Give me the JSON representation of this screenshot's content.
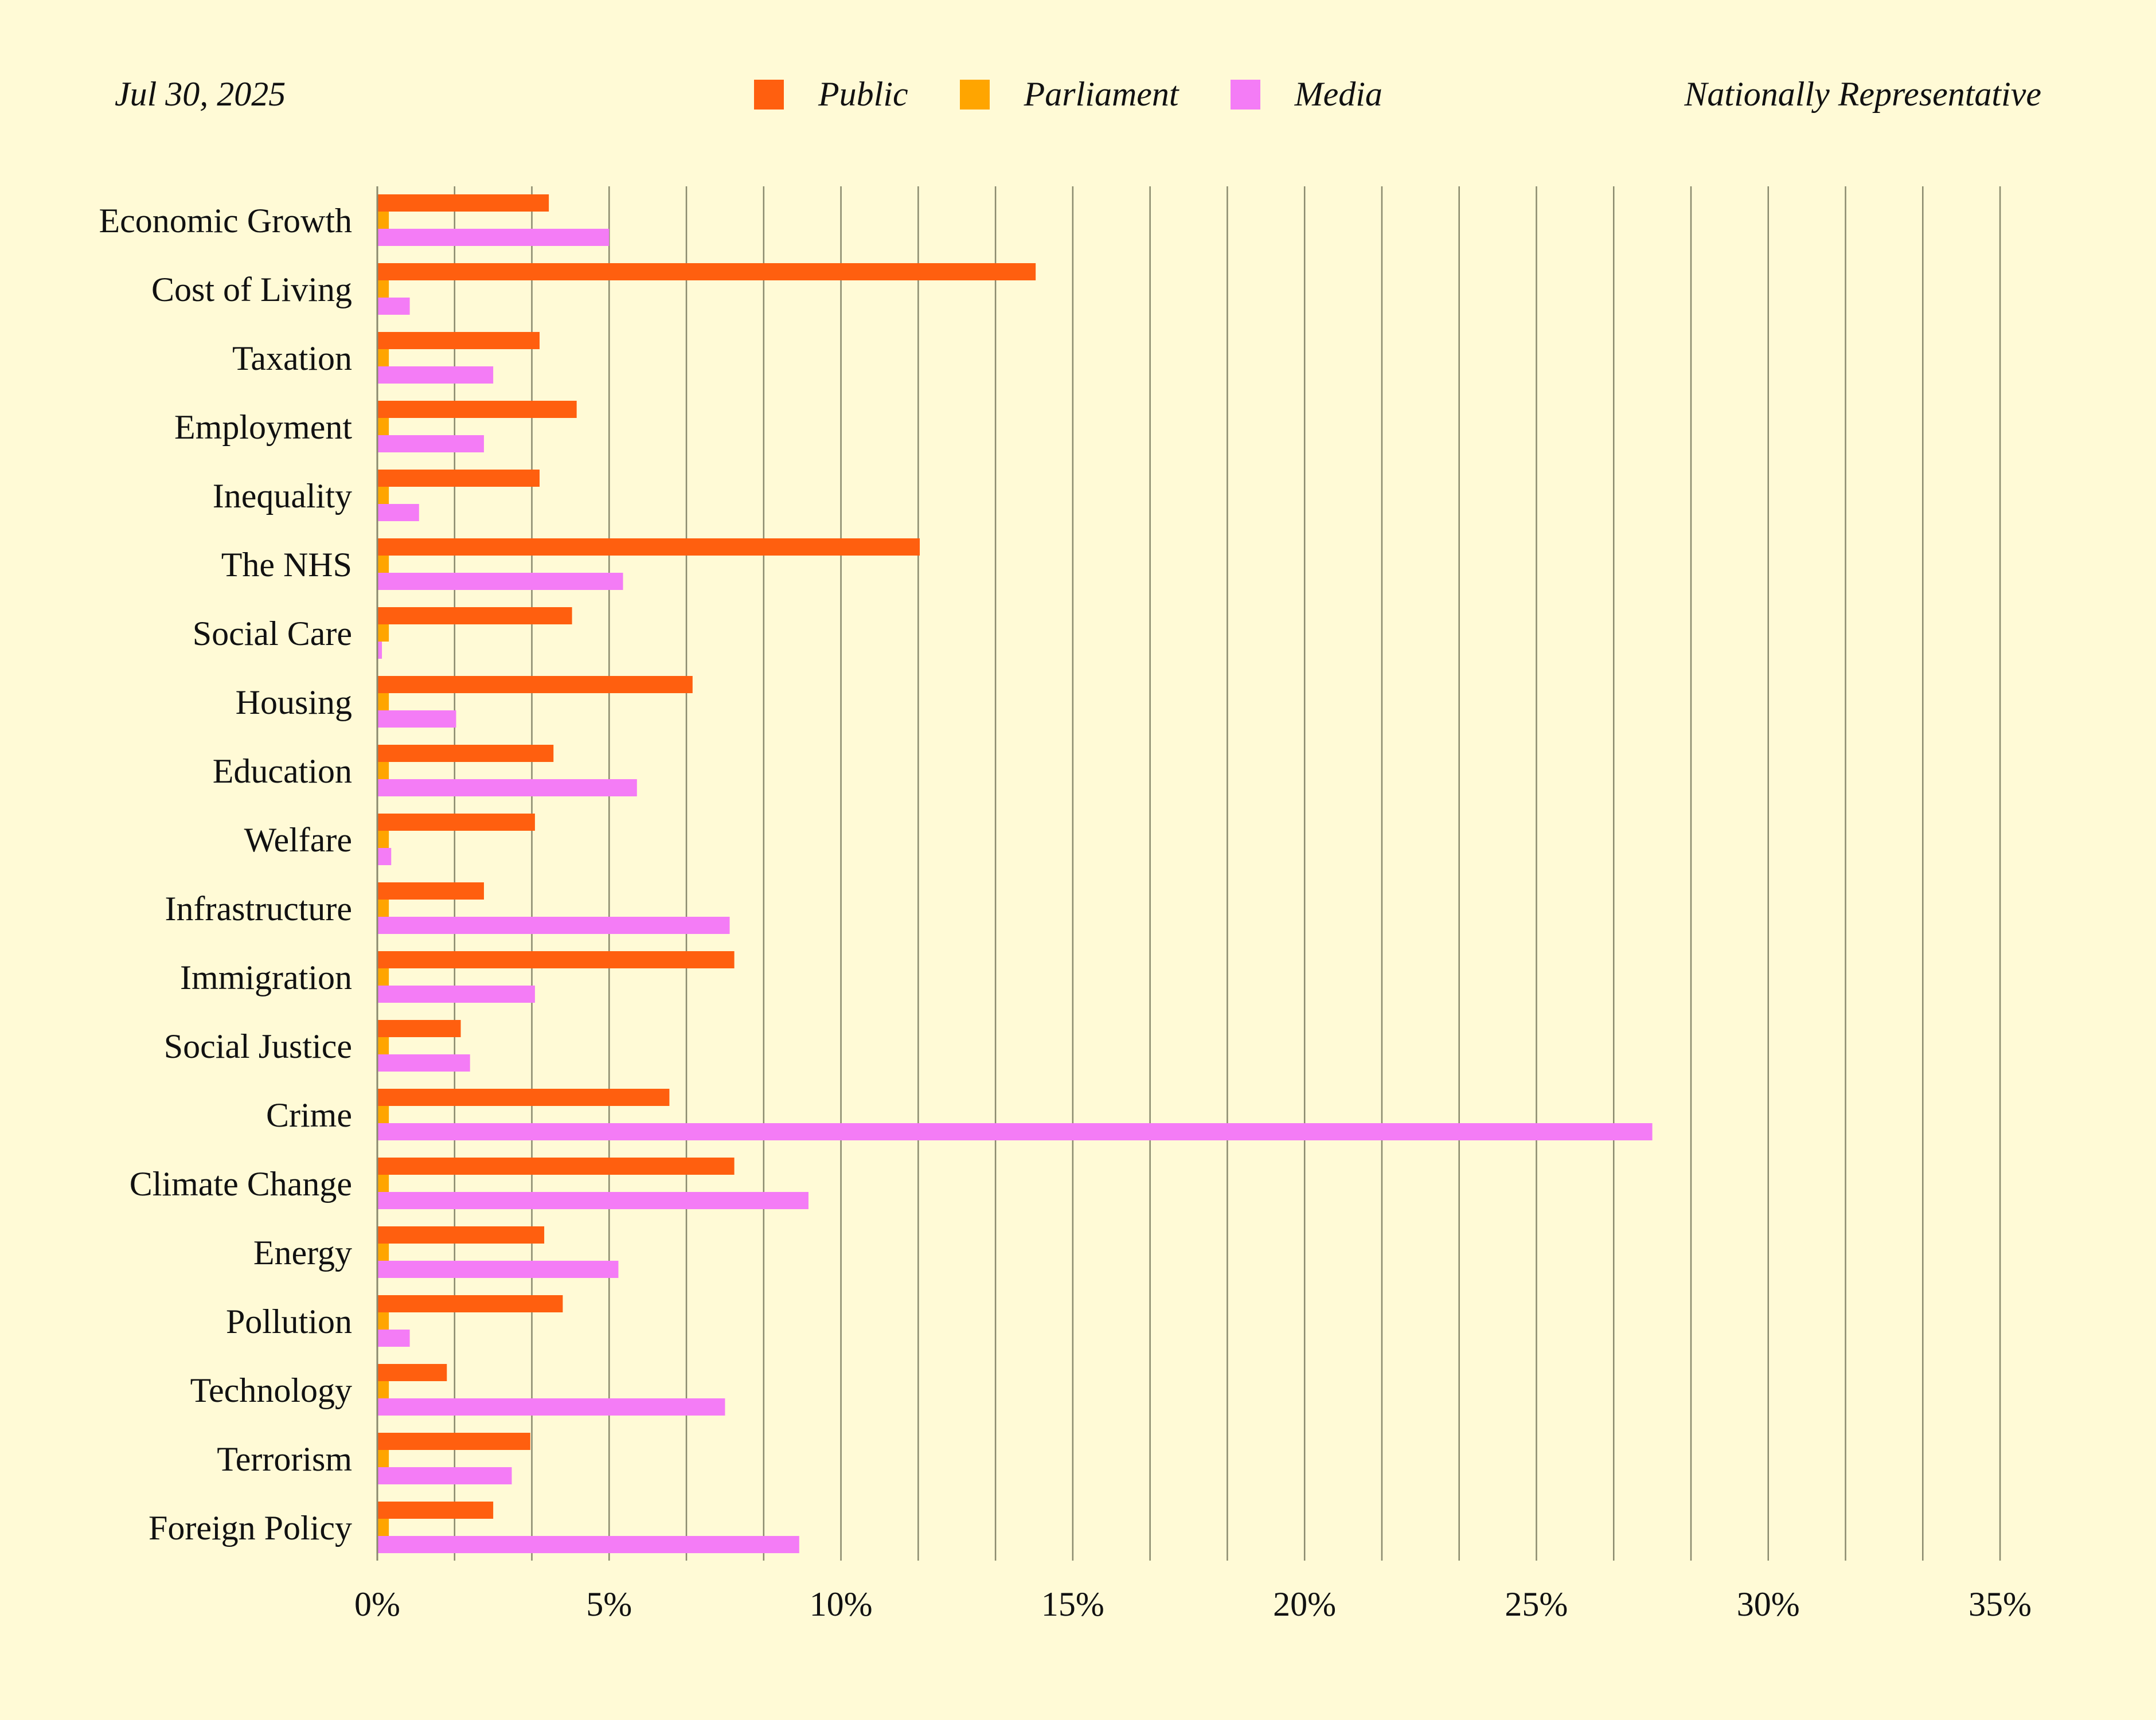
{
  "header": {
    "date": "Jul 30, 2025",
    "scope": "Nationally Representative"
  },
  "colors": {
    "background": "#fffad6",
    "public": "#ff5f0f",
    "parliament": "#ffa500",
    "media": "#f47cf6",
    "gridline": "#8a8a6e"
  },
  "chart_data": {
    "type": "bar",
    "orientation": "horizontal",
    "categories": [
      "Economic Growth",
      "Cost of Living",
      "Taxation",
      "Employment",
      "Inequality",
      "The NHS",
      "Social Care",
      "Housing",
      "Education",
      "Welfare",
      "Infrastructure",
      "Immigration",
      "Social Justice",
      "Crime",
      "Climate Change",
      "Energy",
      "Pollution",
      "Technology",
      "Terrorism",
      "Foreign Policy"
    ],
    "series": [
      {
        "name": "Public",
        "color": "#ff5f0f",
        "values": [
          3.7,
          14.2,
          3.5,
          4.3,
          3.5,
          11.7,
          4.2,
          6.8,
          3.8,
          3.4,
          2.3,
          7.7,
          1.8,
          6.3,
          7.7,
          3.6,
          4.0,
          1.5,
          3.3,
          2.5
        ]
      },
      {
        "name": "Parliament",
        "color": "#ffa500",
        "values": [
          0.2,
          0.2,
          0.2,
          0.2,
          0.2,
          0.2,
          0.2,
          0.2,
          0.2,
          0.2,
          0.2,
          0.2,
          0.2,
          0.2,
          0.2,
          0.2,
          0.2,
          0.2,
          0.2,
          0.2
        ]
      },
      {
        "name": "Media",
        "color": "#f47cf6",
        "values": [
          5.0,
          0.7,
          2.5,
          2.3,
          0.9,
          5.3,
          0.1,
          1.7,
          5.6,
          0.3,
          7.6,
          3.4,
          2.0,
          27.5,
          9.3,
          5.2,
          0.7,
          7.5,
          2.9,
          9.1
        ]
      }
    ],
    "xlim": [
      0,
      35
    ],
    "xticks": [
      0,
      5,
      10,
      15,
      20,
      25,
      30,
      35
    ],
    "xtick_labels": [
      "0%",
      "5%",
      "10%",
      "15%",
      "20%",
      "25%",
      "30%",
      "35%"
    ],
    "minor_gridline_step": 1.6667,
    "grid": true,
    "legend_position": "top-center"
  }
}
